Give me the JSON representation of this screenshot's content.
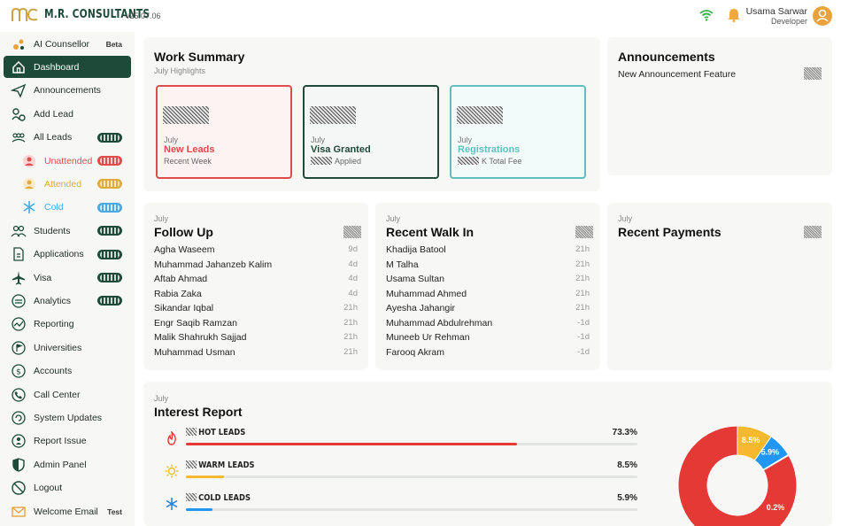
{
  "header": {
    "brand": "M.R. CONSULTANTS",
    "version": "v25.07.06",
    "user_name": "Usama Sarwar",
    "user_role": "Developer"
  },
  "sidebar": {
    "items": [
      {
        "label": "AI Counsellor",
        "icon": "ai-icon",
        "tag": "Beta"
      },
      {
        "label": "Dashboard",
        "icon": "home-icon",
        "active": true
      },
      {
        "label": "Announcements",
        "icon": "send-icon"
      },
      {
        "label": "Add Lead",
        "icon": "add-lead-icon"
      },
      {
        "label": "All Leads",
        "icon": "users-icon",
        "badge": "dark"
      },
      {
        "label": "Unattended",
        "icon": "unattended-icon",
        "badge": "red",
        "sub": true
      },
      {
        "label": "Attended",
        "icon": "attended-icon",
        "badge": "gold",
        "sub": true
      },
      {
        "label": "Cold",
        "icon": "snowflake-icon",
        "badge": "blue",
        "sub": true
      },
      {
        "label": "Students",
        "icon": "students-icon",
        "badge": "dark"
      },
      {
        "label": "Applications",
        "icon": "document-icon",
        "badge": "dark"
      },
      {
        "label": "Visa",
        "icon": "plane-icon",
        "badge": "dark"
      },
      {
        "label": "Analytics",
        "icon": "analytics-icon",
        "badge": "dark"
      },
      {
        "label": "Reporting",
        "icon": "reporting-icon"
      },
      {
        "label": "Universities",
        "icon": "flag-icon"
      },
      {
        "label": "Accounts",
        "icon": "dollar-icon"
      },
      {
        "label": "Call Center",
        "icon": "phone-icon"
      },
      {
        "label": "System Updates",
        "icon": "update-icon"
      },
      {
        "label": "Report Issue",
        "icon": "issue-icon"
      },
      {
        "label": "Admin Panel",
        "icon": "shield-icon"
      },
      {
        "label": "Logout",
        "icon": "logout-icon"
      },
      {
        "label": "Welcome Email",
        "icon": "mail-icon",
        "tag": "Test"
      }
    ]
  },
  "work_summary": {
    "title": "Work Summary",
    "subtitle": "July Highlights",
    "cards": [
      {
        "month": "July",
        "name": "New Leads",
        "desc": "Recent Week",
        "color": "#e04b4b"
      },
      {
        "month": "July",
        "name": "Visa Granted",
        "desc": "Applied",
        "color": "#1d4a39"
      },
      {
        "month": "July",
        "name": "Registrations",
        "desc": "K Total Fee",
        "color": "#5fbfbf"
      }
    ]
  },
  "announcements": {
    "title": "Announcements",
    "items": [
      "New Announcement Feature"
    ]
  },
  "follow_up": {
    "month": "July",
    "title": "Follow Up",
    "rows": [
      {
        "name": "Agha Waseem",
        "time": "9d"
      },
      {
        "name": "Muhammad Jahanzeb Kalim",
        "time": "4d"
      },
      {
        "name": "Aftab Ahmad",
        "time": "4d"
      },
      {
        "name": "Rabia Zaka",
        "time": "4d"
      },
      {
        "name": "Sikandar Iqbal",
        "time": "21h"
      },
      {
        "name": "Engr Saqib Ramzan",
        "time": "21h"
      },
      {
        "name": "Malik Shahrukh Sajjad",
        "time": "21h"
      },
      {
        "name": "Muhammad Usman",
        "time": "21h"
      }
    ]
  },
  "recent_walk_in": {
    "month": "July",
    "title": "Recent Walk In",
    "rows": [
      {
        "name": "Khadija Batool",
        "time": "21h"
      },
      {
        "name": "M Talha",
        "time": "21h"
      },
      {
        "name": "Usama Sultan",
        "time": "21h"
      },
      {
        "name": "Muhammad Ahmed",
        "time": "21h"
      },
      {
        "name": "Ayesha Jahangir",
        "time": "21h"
      },
      {
        "name": "Muhammad Abdulrehman",
        "time": "-1d"
      },
      {
        "name": "Muneeb Ur Rehman",
        "time": "-1d"
      },
      {
        "name": "Farooq Akram",
        "time": "-1d"
      }
    ]
  },
  "recent_payments": {
    "month": "July",
    "title": "Recent Payments"
  },
  "interest_report": {
    "month": "July",
    "title": "Interest Report",
    "rows": [
      {
        "name": "HOT LEADS",
        "pct": "73.3%",
        "value": 73.3,
        "color": "#e53935",
        "icon": "flame-icon"
      },
      {
        "name": "WARM LEADS",
        "pct": "8.5%",
        "value": 8.5,
        "color": "#f5b82e",
        "icon": "sun-icon"
      },
      {
        "name": "COLD LEADS",
        "pct": "5.9%",
        "value": 5.9,
        "color": "#2196f3",
        "icon": "snowflake-icon"
      }
    ],
    "donut": [
      {
        "label": "73.3%",
        "value": 73.3,
        "color": "#e53935"
      },
      {
        "label": "8.5%",
        "value": 8.5,
        "color": "#f5b82e"
      },
      {
        "label": "5.9%",
        "value": 5.9,
        "color": "#2196f3"
      },
      {
        "label": "0.2%",
        "value": 0.2,
        "color": "#9e9e9e"
      }
    ]
  }
}
